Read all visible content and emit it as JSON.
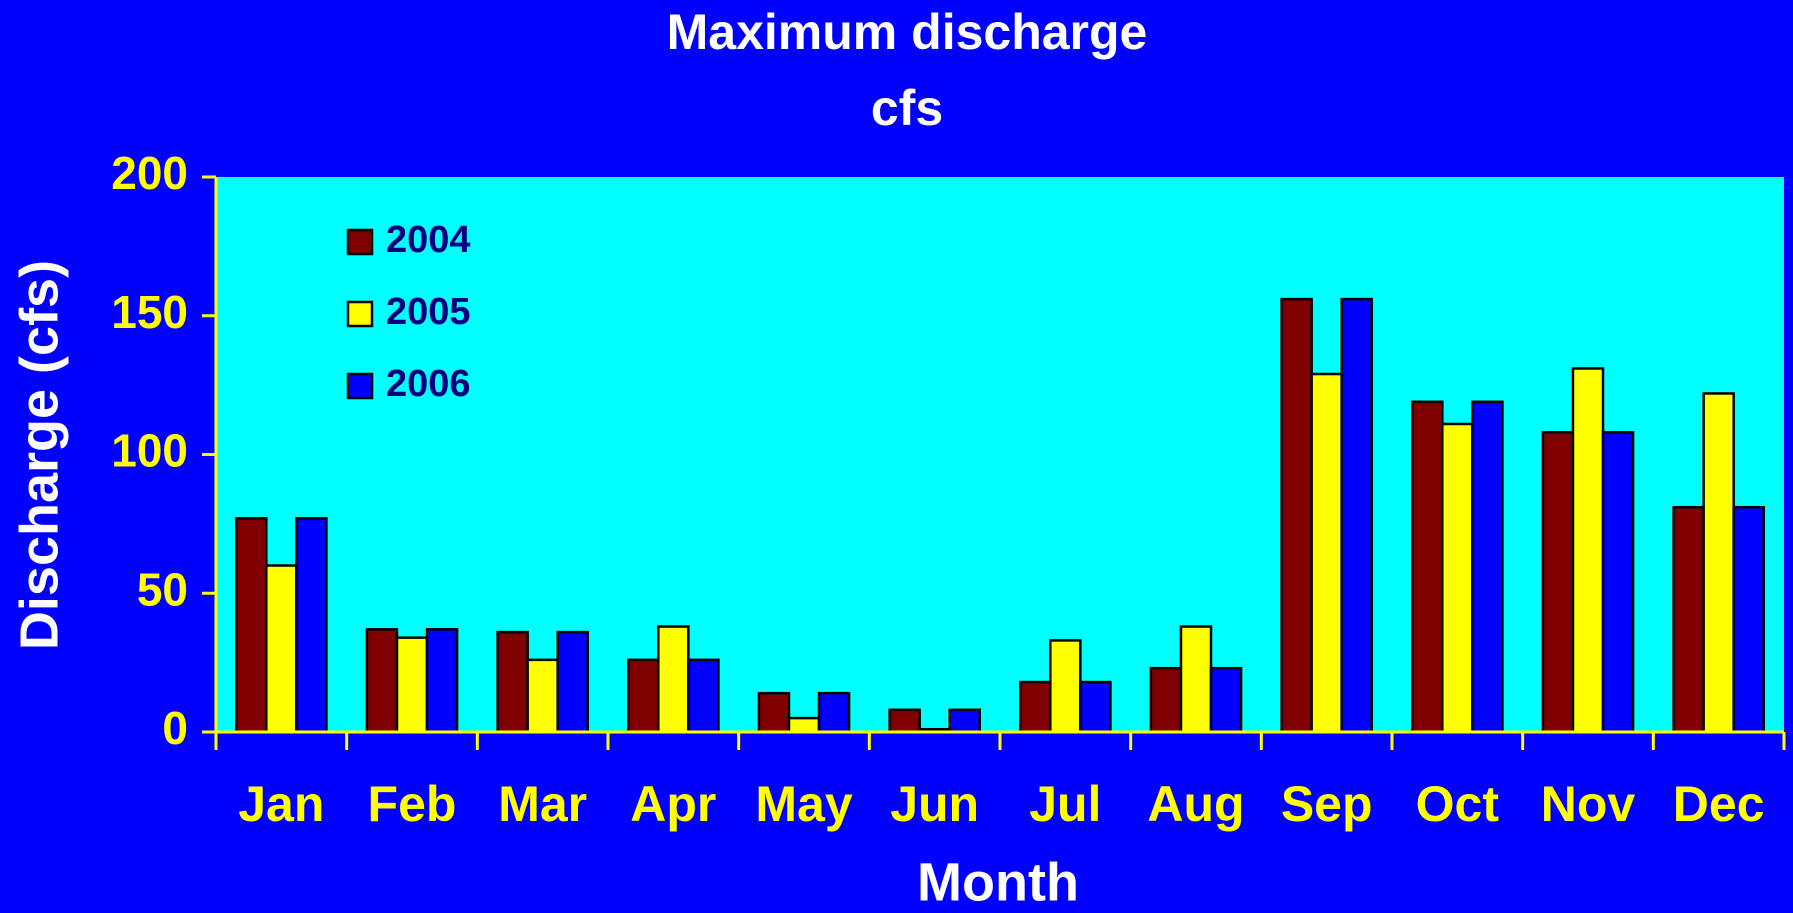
{
  "chart_data": {
    "type": "bar",
    "title": [
      "Maximum discharge",
      "cfs"
    ],
    "y_label": "Discharge (cfs)",
    "x_label": "Month",
    "categories": [
      "Jan",
      "Feb",
      "Mar",
      "Apr",
      "May",
      "Jun",
      "Jul",
      "Aug",
      "Sep",
      "Oct",
      "Nov",
      "Dec"
    ],
    "series": [
      {
        "name": "2004",
        "color": "#800000",
        "values": [
          77,
          37,
          36,
          26,
          14,
          8,
          18,
          23,
          156,
          119,
          108,
          81
        ]
      },
      {
        "name": "2005",
        "color": "#ffff00",
        "values": [
          60,
          34,
          26,
          38,
          5,
          1,
          33,
          38,
          129,
          111,
          131,
          122
        ]
      },
      {
        "name": "2006",
        "color": "#0000ff",
        "values": [
          77,
          37,
          36,
          26,
          14,
          8,
          18,
          23,
          156,
          119,
          108,
          81
        ]
      }
    ],
    "ylim": [
      0,
      200
    ],
    "yticks": [
      0,
      50,
      100,
      150,
      200
    ],
    "legend": "upper left",
    "grid": false
  }
}
